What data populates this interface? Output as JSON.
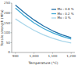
{
  "chart_data": {
    "type": "line",
    "x_label": "Temperature (°C)",
    "y_label": "Tensile strength (MPa)",
    "x": [
      900,
      950,
      1000,
      1050,
      1100,
      1150,
      1200
    ],
    "series": [
      {
        "name": "Mo : 0.8 %",
        "color": "#1f6fa8",
        "values": [
          240,
          200,
          165,
          135,
          110,
          90,
          75
        ]
      },
      {
        "name": "Mo : 0.2 %",
        "color": "#3fa9d6",
        "values": [
          225,
          185,
          150,
          122,
          100,
          82,
          68
        ]
      },
      {
        "name": "Mo : 0 %",
        "color": "#a9d6ea",
        "values": [
          170,
          140,
          112,
          90,
          72,
          58,
          48
        ]
      }
    ],
    "xlim": [
      880,
      1220
    ],
    "xticks": [
      900,
      {
        "value": 1000,
        "label": "1,000"
      },
      {
        "value": 1100,
        "label": "1,100"
      },
      {
        "value": 1200,
        "label": "1,200"
      }
    ],
    "ylim": [
      0,
      250
    ],
    "yticks": [
      0,
      50,
      100,
      150,
      200,
      250
    ],
    "legend": "upper-right",
    "grid": false
  }
}
